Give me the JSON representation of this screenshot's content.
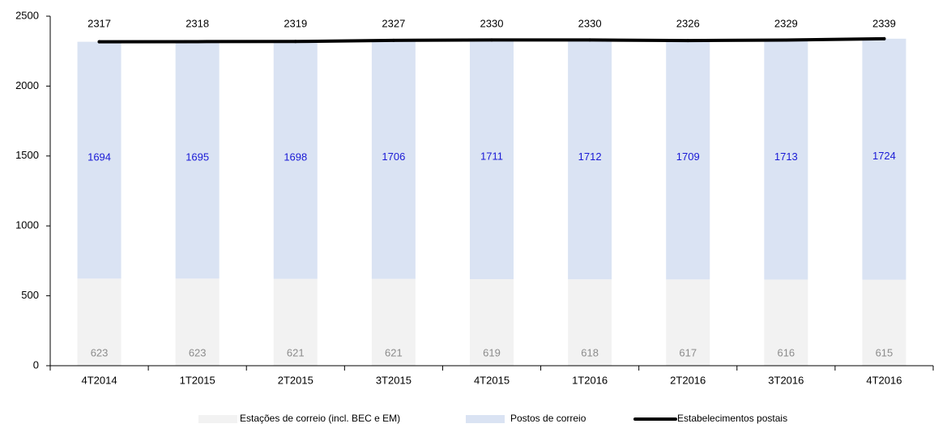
{
  "chart_data": {
    "type": "bar",
    "stacked": true,
    "categories": [
      "4T2014",
      "1T2015",
      "2T2015",
      "3T2015",
      "4T2015",
      "1T2016",
      "2T2016",
      "3T2016",
      "4T2016"
    ],
    "series": [
      {
        "name": "Estações de correio (incl. BEC e EM)",
        "kind": "bar",
        "color": "#f2f2f2",
        "label_color": "#8c8c8c",
        "values": [
          623,
          623,
          621,
          621,
          619,
          618,
          617,
          616,
          615
        ]
      },
      {
        "name": "Postos de correio",
        "kind": "bar",
        "color": "#dae3f3",
        "label_color": "#1a1ad6",
        "values": [
          1694,
          1695,
          1698,
          1706,
          1711,
          1712,
          1709,
          1713,
          1724
        ]
      },
      {
        "name": "Estabelecimentos postais",
        "kind": "line",
        "color": "#000000",
        "values": [
          2317,
          2318,
          2319,
          2327,
          2330,
          2330,
          2326,
          2329,
          2339
        ]
      }
    ],
    "ylim": [
      0,
      2500
    ],
    "yticks": [
      0,
      500,
      1000,
      1500,
      2000,
      2500
    ],
    "grid": false,
    "legend_position": "bottom"
  }
}
